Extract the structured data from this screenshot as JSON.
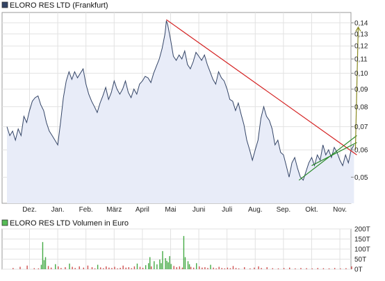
{
  "chart_data": [
    {
      "type": "line",
      "legend": "ELORO RES LTD (Frankfurt)",
      "legend_color": "#334466",
      "line_color": "#334466",
      "fill_color": "#e8ecf8",
      "months": [
        "Dez.",
        "Jan.",
        "Feb.",
        "März",
        "April",
        "Mai",
        "Juni",
        "Juli",
        "Aug.",
        "Sep.",
        "Okt.",
        "Nov."
      ],
      "y_ticks": [
        "0,05",
        "0,06",
        "0,07",
        "0,08",
        "0,09",
        "0,10",
        "0,11",
        "0,12",
        "0,13",
        "0,14"
      ],
      "y_tick_values": [
        0.05,
        0.06,
        0.07,
        0.08,
        0.09,
        0.1,
        0.11,
        0.12,
        0.13,
        0.14
      ],
      "ylim": [
        0.042,
        0.15
      ],
      "x_range": [
        0,
        12.4
      ],
      "y_scale": "log",
      "grid": true,
      "points": [
        [
          0.0,
          0.07
        ],
        [
          0.1,
          0.066
        ],
        [
          0.2,
          0.068
        ],
        [
          0.3,
          0.064
        ],
        [
          0.4,
          0.069
        ],
        [
          0.5,
          0.066
        ],
        [
          0.6,
          0.075
        ],
        [
          0.7,
          0.072
        ],
        [
          0.8,
          0.078
        ],
        [
          0.9,
          0.083
        ],
        [
          1.0,
          0.085
        ],
        [
          1.1,
          0.086
        ],
        [
          1.2,
          0.081
        ],
        [
          1.3,
          0.078
        ],
        [
          1.4,
          0.072
        ],
        [
          1.5,
          0.068
        ],
        [
          1.6,
          0.066
        ],
        [
          1.7,
          0.064
        ],
        [
          1.8,
          0.062
        ],
        [
          1.9,
          0.072
        ],
        [
          2.0,
          0.085
        ],
        [
          2.1,
          0.095
        ],
        [
          2.2,
          0.101
        ],
        [
          2.3,
          0.096
        ],
        [
          2.4,
          0.101
        ],
        [
          2.5,
          0.097
        ],
        [
          2.6,
          0.1
        ],
        [
          2.7,
          0.103
        ],
        [
          2.8,
          0.093
        ],
        [
          2.9,
          0.087
        ],
        [
          3.0,
          0.083
        ],
        [
          3.1,
          0.08
        ],
        [
          3.2,
          0.077
        ],
        [
          3.3,
          0.082
        ],
        [
          3.4,
          0.086
        ],
        [
          3.5,
          0.091
        ],
        [
          3.6,
          0.084
        ],
        [
          3.7,
          0.088
        ],
        [
          3.8,
          0.095
        ],
        [
          3.9,
          0.09
        ],
        [
          4.0,
          0.087
        ],
        [
          4.1,
          0.09
        ],
        [
          4.2,
          0.095
        ],
        [
          4.3,
          0.088
        ],
        [
          4.4,
          0.085
        ],
        [
          4.5,
          0.09
        ],
        [
          4.6,
          0.087
        ],
        [
          4.7,
          0.093
        ],
        [
          4.8,
          0.095
        ],
        [
          4.9,
          0.098
        ],
        [
          5.0,
          0.097
        ],
        [
          5.1,
          0.094
        ],
        [
          5.2,
          0.1
        ],
        [
          5.3,
          0.105
        ],
        [
          5.4,
          0.11
        ],
        [
          5.5,
          0.118
        ],
        [
          5.6,
          0.13
        ],
        [
          5.65,
          0.142
        ],
        [
          5.7,
          0.138
        ],
        [
          5.8,
          0.125
        ],
        [
          5.9,
          0.112
        ],
        [
          6.0,
          0.109
        ],
        [
          6.1,
          0.113
        ],
        [
          6.2,
          0.11
        ],
        [
          6.3,
          0.116
        ],
        [
          6.4,
          0.106
        ],
        [
          6.5,
          0.103
        ],
        [
          6.6,
          0.108
        ],
        [
          6.7,
          0.115
        ],
        [
          6.8,
          0.112
        ],
        [
          6.9,
          0.109
        ],
        [
          7.0,
          0.113
        ],
        [
          7.1,
          0.106
        ],
        [
          7.2,
          0.101
        ],
        [
          7.3,
          0.096
        ],
        [
          7.4,
          0.093
        ],
        [
          7.5,
          0.101
        ],
        [
          7.6,
          0.097
        ],
        [
          7.7,
          0.095
        ],
        [
          7.8,
          0.09
        ],
        [
          7.9,
          0.084
        ],
        [
          8.0,
          0.083
        ],
        [
          8.1,
          0.078
        ],
        [
          8.2,
          0.082
        ],
        [
          8.3,
          0.076
        ],
        [
          8.4,
          0.071
        ],
        [
          8.5,
          0.064
        ],
        [
          8.6,
          0.06
        ],
        [
          8.7,
          0.056
        ],
        [
          8.8,
          0.06
        ],
        [
          8.9,
          0.064
        ],
        [
          9.0,
          0.074
        ],
        [
          9.1,
          0.08
        ],
        [
          9.2,
          0.075
        ],
        [
          9.3,
          0.073
        ],
        [
          9.4,
          0.069
        ],
        [
          9.5,
          0.062
        ],
        [
          9.6,
          0.064
        ],
        [
          9.7,
          0.059
        ],
        [
          9.8,
          0.058
        ],
        [
          9.9,
          0.054
        ],
        [
          10.0,
          0.05
        ],
        [
          10.1,
          0.055
        ],
        [
          10.2,
          0.057
        ],
        [
          10.3,
          0.053
        ],
        [
          10.4,
          0.05
        ],
        [
          10.5,
          0.049
        ],
        [
          10.6,
          0.052
        ],
        [
          10.7,
          0.055
        ],
        [
          10.8,
          0.057
        ],
        [
          10.9,
          0.054
        ],
        [
          11.0,
          0.058
        ],
        [
          11.1,
          0.056
        ],
        [
          11.2,
          0.062
        ],
        [
          11.3,
          0.058
        ],
        [
          11.4,
          0.06
        ],
        [
          11.5,
          0.057
        ],
        [
          11.6,
          0.061
        ],
        [
          11.7,
          0.059
        ],
        [
          11.8,
          0.056
        ],
        [
          11.9,
          0.054
        ],
        [
          12.0,
          0.058
        ],
        [
          12.1,
          0.055
        ],
        [
          12.2,
          0.06
        ],
        [
          12.3,
          0.062
        ]
      ],
      "trendlines": [
        {
          "color": "#d42020",
          "from": [
            5.65,
            0.143
          ],
          "to": [
            12.4,
            0.058
          ]
        },
        {
          "color": "#2a8a2a",
          "from": [
            10.35,
            0.049
          ],
          "to": [
            12.4,
            0.066
          ]
        },
        {
          "color": "#2a8a2a",
          "from": [
            10.8,
            0.054
          ],
          "to": [
            12.4,
            0.063
          ]
        },
        {
          "color": "#8a8a20",
          "from": [
            12.35,
            0.06
          ],
          "to": [
            12.45,
            0.136
          ]
        }
      ]
    },
    {
      "type": "bar",
      "legend": "ELORO RES LTD Volumen in Euro",
      "legend_color": "#55bb55",
      "y_ticks": [
        "0T",
        "50T",
        "100T",
        "150T",
        "200T"
      ],
      "y_tick_values": [
        0,
        50,
        100,
        150,
        200
      ],
      "ylim": [
        0,
        200
      ],
      "grid": true,
      "bars": [
        [
          0.2,
          6
        ],
        [
          0.45,
          12
        ],
        [
          0.7,
          18
        ],
        [
          0.95,
          5
        ],
        [
          1.1,
          4
        ],
        [
          1.2,
          22
        ],
        [
          1.25,
          135
        ],
        [
          1.3,
          45
        ],
        [
          1.35,
          60
        ],
        [
          1.45,
          16
        ],
        [
          1.55,
          8
        ],
        [
          1.7,
          25
        ],
        [
          1.8,
          14
        ],
        [
          1.9,
          6
        ],
        [
          2.05,
          10
        ],
        [
          2.2,
          28
        ],
        [
          2.3,
          12
        ],
        [
          2.4,
          6
        ],
        [
          2.55,
          14
        ],
        [
          2.7,
          8
        ],
        [
          2.85,
          18
        ],
        [
          3.0,
          10
        ],
        [
          3.1,
          4
        ],
        [
          3.2,
          22
        ],
        [
          3.3,
          9
        ],
        [
          3.4,
          5
        ],
        [
          3.5,
          14
        ],
        [
          3.6,
          8
        ],
        [
          3.7,
          6
        ],
        [
          3.8,
          12
        ],
        [
          3.9,
          4
        ],
        [
          4.0,
          7
        ],
        [
          4.1,
          18
        ],
        [
          4.2,
          8
        ],
        [
          4.3,
          10
        ],
        [
          4.4,
          5
        ],
        [
          4.5,
          14
        ],
        [
          4.6,
          28
        ],
        [
          4.7,
          12
        ],
        [
          4.8,
          7
        ],
        [
          4.9,
          20
        ],
        [
          5.0,
          30
        ],
        [
          5.05,
          60
        ],
        [
          5.1,
          14
        ],
        [
          5.2,
          40
        ],
        [
          5.3,
          24
        ],
        [
          5.4,
          48
        ],
        [
          5.45,
          30
        ],
        [
          5.5,
          90
        ],
        [
          5.6,
          55
        ],
        [
          5.65,
          42
        ],
        [
          5.7,
          34
        ],
        [
          5.75,
          65
        ],
        [
          5.8,
          26
        ],
        [
          5.9,
          16
        ],
        [
          6.0,
          10
        ],
        [
          6.1,
          14
        ],
        [
          6.2,
          8
        ],
        [
          6.25,
          165
        ],
        [
          6.3,
          60
        ],
        [
          6.4,
          40
        ],
        [
          6.45,
          25
        ],
        [
          6.5,
          12
        ],
        [
          6.6,
          8
        ],
        [
          6.7,
          30
        ],
        [
          6.8,
          14
        ],
        [
          6.9,
          8
        ],
        [
          7.0,
          10
        ],
        [
          7.1,
          6
        ],
        [
          7.2,
          22
        ],
        [
          7.3,
          8
        ],
        [
          7.4,
          4
        ],
        [
          7.5,
          12
        ],
        [
          7.6,
          6
        ],
        [
          7.7,
          4
        ],
        [
          7.8,
          8
        ],
        [
          7.9,
          5
        ],
        [
          8.0,
          16
        ],
        [
          8.1,
          6
        ],
        [
          8.2,
          4
        ],
        [
          8.4,
          10
        ],
        [
          8.6,
          4
        ],
        [
          8.75,
          8
        ],
        [
          8.9,
          14
        ],
        [
          9.0,
          6
        ],
        [
          9.2,
          10
        ],
        [
          9.4,
          5
        ],
        [
          9.6,
          4
        ],
        [
          9.8,
          6
        ],
        [
          10.0,
          8
        ],
        [
          10.2,
          4
        ],
        [
          10.4,
          6
        ],
        [
          10.6,
          5
        ],
        [
          10.8,
          4
        ],
        [
          11.0,
          6
        ],
        [
          11.2,
          5
        ],
        [
          11.4,
          4
        ],
        [
          11.6,
          6
        ],
        [
          11.8,
          4
        ],
        [
          12.0,
          5
        ],
        [
          12.2,
          14
        ]
      ]
    }
  ]
}
